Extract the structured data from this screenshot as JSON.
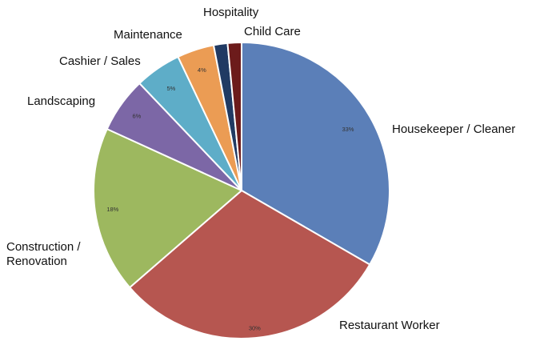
{
  "chart_data": {
    "type": "pie",
    "title": "",
    "start": "12 o'clock, clockwise",
    "slices": [
      {
        "label": "Housekeeper / Cleaner",
        "label_lines": [
          "Housekeeper / Cleaner"
        ],
        "value": 33,
        "value_label": "33%",
        "color": "#5b7fb8"
      },
      {
        "label": "Restaurant Worker",
        "label_lines": [
          "Restaurant Worker"
        ],
        "value": 30,
        "value_label": "30%",
        "color": "#b65650"
      },
      {
        "label": "Construction / Renovation",
        "label_lines": [
          "Construction /",
          "Renovation"
        ],
        "value": 18,
        "value_label": "18%",
        "color": "#9db85f"
      },
      {
        "label": "Landscaping",
        "label_lines": [
          "Landscaping"
        ],
        "value": 6,
        "value_label": "6%",
        "color": "#7c67a6"
      },
      {
        "label": "Cashier / Sales",
        "label_lines": [
          "Cashier / Sales"
        ],
        "value": 5,
        "value_label": "5%",
        "color": "#5eadc8"
      },
      {
        "label": "Maintenance",
        "label_lines": [
          "Maintenance"
        ],
        "value": 4,
        "value_label": "4%",
        "color": "#eb9c54"
      },
      {
        "label": "Hospitality",
        "label_lines": [
          "Hospitality"
        ],
        "value": 1.5,
        "value_label": "",
        "color": "#203a63"
      },
      {
        "label": "Child Care",
        "label_lines": [
          "Child Care"
        ],
        "value": 1.5,
        "value_label": "",
        "color": "#6c1b1b"
      }
    ]
  }
}
